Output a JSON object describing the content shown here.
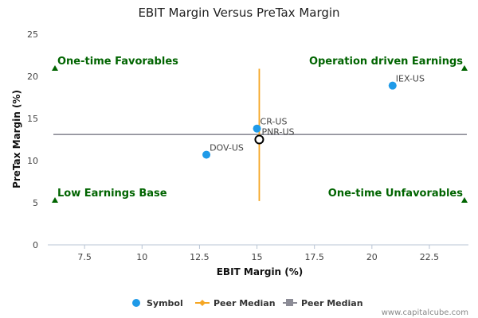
{
  "chart_data": {
    "type": "scatter",
    "title": "EBIT Margin Versus PreTax Margin",
    "xlabel": "EBIT Margin (%)",
    "ylabel": "PreTax Margin (%)",
    "xlim": [
      5.9,
      24.2
    ],
    "ylim": [
      0,
      25
    ],
    "xticks": [
      "7.5",
      "10",
      "12.5",
      "15",
      "17.5",
      "20",
      "22.5"
    ],
    "yticks": [
      "0",
      "5",
      "10",
      "15",
      "20",
      "25"
    ],
    "grid": false,
    "legend_position": "bottom",
    "points": [
      {
        "label": "IEX-US",
        "x": 20.9,
        "y": 18.9
      },
      {
        "label": "CR-US",
        "x": 15.0,
        "y": 13.8
      },
      {
        "label": "PNR-US",
        "x": 15.1,
        "y": 12.5,
        "highlight": true
      },
      {
        "label": "DOV-US",
        "x": 12.8,
        "y": 10.7
      }
    ],
    "peer_median_x": 15.1,
    "peer_median_y": 13.1,
    "quadrants": {
      "top_left": "One-time Favorables",
      "top_right": "Operation driven Earnings",
      "bottom_left": "Low Earnings Base",
      "bottom_right": "One-time Unfavorables"
    },
    "legend": [
      {
        "label": "Symbol",
        "color": "#1f9ae8"
      },
      {
        "label": "Peer Median",
        "color": "#f5a623"
      },
      {
        "label": "Peer Median",
        "color": "#8c8c96"
      }
    ]
  },
  "credit": "www.capitalcube.com"
}
